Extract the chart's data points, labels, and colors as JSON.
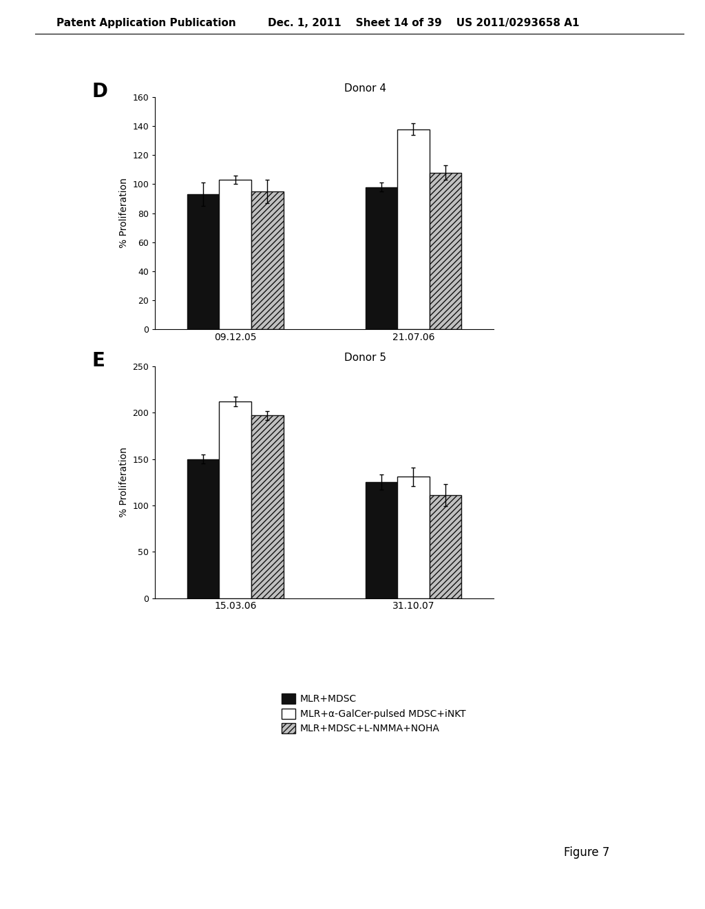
{
  "panel_D": {
    "title": "Donor 4",
    "label": "D",
    "groups": [
      "09.12.05",
      "21.07.06"
    ],
    "black_vals": [
      93,
      98
    ],
    "white_vals": [
      103,
      138
    ],
    "gray_vals": [
      95,
      108
    ],
    "black_err": [
      8,
      3
    ],
    "white_err": [
      3,
      4
    ],
    "gray_err": [
      8,
      5
    ],
    "ylim": [
      0,
      160
    ],
    "yticks": [
      0,
      20,
      40,
      60,
      80,
      100,
      120,
      140,
      160
    ],
    "ylabel": "% Proliferation"
  },
  "panel_E": {
    "title": "Donor 5",
    "label": "E",
    "groups": [
      "15.03.06",
      "31.10.07"
    ],
    "black_vals": [
      150,
      125
    ],
    "white_vals": [
      212,
      131
    ],
    "gray_vals": [
      197,
      111
    ],
    "black_err": [
      5,
      8
    ],
    "white_err": [
      5,
      10
    ],
    "gray_err": [
      5,
      12
    ],
    "ylim": [
      0,
      250
    ],
    "yticks": [
      0,
      50,
      100,
      150,
      200,
      250
    ],
    "ylabel": "% Proliferation"
  },
  "legend_labels": [
    "MLR+MDSC",
    "MLR+α-GalCer-pulsed MDSC+iNKT",
    "MLR+MDSC+L-NMMA+NOHA"
  ],
  "bar_width": 0.18,
  "bg_color": "#ffffff",
  "bar_color_black": "#111111",
  "bar_color_white": "#ffffff",
  "bar_edge_color": "#111111",
  "header_left": "Patent Application Publication",
  "header_right": "Dec. 1, 2011    Sheet 14 of 39    US 2011/0293658 A1",
  "figure_label": "Figure 7"
}
